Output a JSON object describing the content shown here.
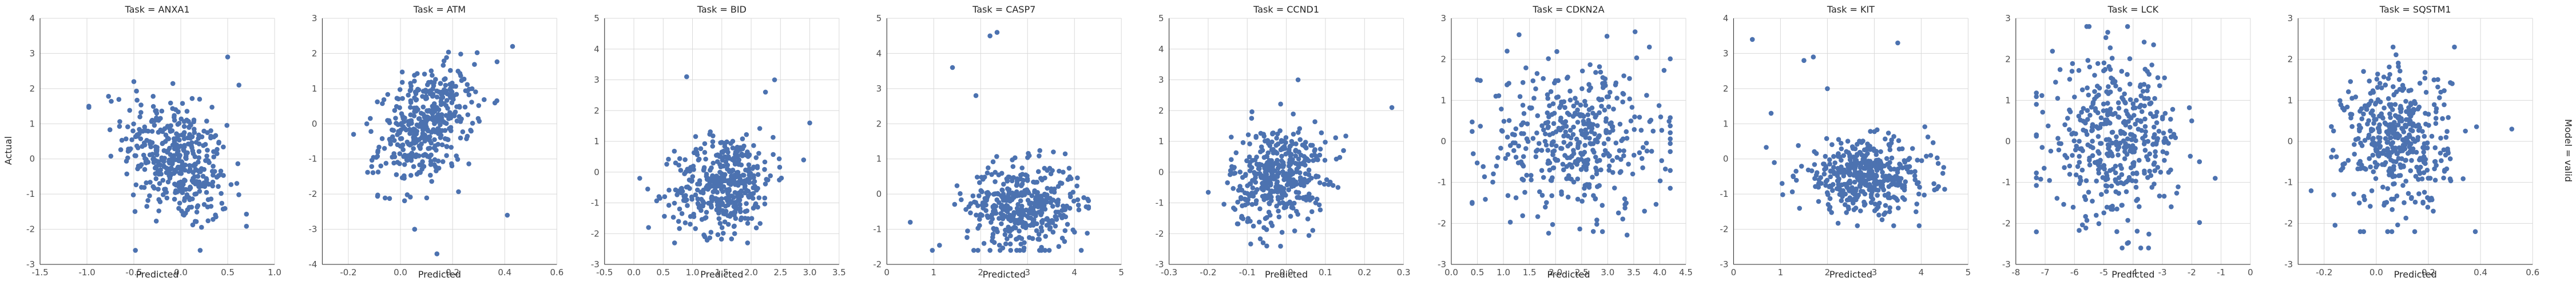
{
  "colors": {
    "points": "#4c72b0",
    "grid": "#d9d9d9",
    "axis": "#262626",
    "background": "#ffffff"
  },
  "figure": {
    "ylabel": "Actual",
    "row_label": "Model = valid",
    "xlabel": "Predicted",
    "grid": true
  },
  "chart_data": [
    {
      "type": "scatter",
      "title": "Task = ANXA1",
      "xlabel": "Predicted",
      "ylabel": "Actual",
      "xlim": [
        -1.5,
        1.0
      ],
      "ylim": [
        -3,
        4
      ],
      "xticks": [
        "-1.5",
        "-1.0",
        "-0.5",
        "0.0",
        "0.5",
        "1.0"
      ],
      "yticks": [
        "-3",
        "-2",
        "-1",
        "0",
        "1",
        "2",
        "3",
        "4"
      ],
      "points": {
        "x_center": -0.05,
        "x_spread": 0.28,
        "x_min": -0.98,
        "x_max": 0.7,
        "y_center": -0.05,
        "y_spread": 0.85,
        "y_min": -2.6,
        "y_max": 2.6,
        "slope": -1.2,
        "n": 420,
        "extra": [
          [
            -0.98,
            1.5
          ],
          [
            -0.5,
            2.2
          ],
          [
            0.62,
            2.1
          ],
          [
            0.5,
            2.9
          ]
        ]
      }
    },
    {
      "type": "scatter",
      "title": "Task = ATM",
      "xlabel": "Predicted",
      "ylabel": "",
      "xlim": [
        -0.3,
        0.6
      ],
      "ylim": [
        -4,
        3
      ],
      "xticks": [
        "-0.2",
        "0.0",
        "0.2",
        "0.4",
        "0.6"
      ],
      "yticks": [
        "-4",
        "-3",
        "-2",
        "-1",
        "0",
        "1",
        "2",
        "3"
      ],
      "points": {
        "x_center": 0.1,
        "x_spread": 0.09,
        "x_min": -0.22,
        "x_max": 0.5,
        "y_center": -0.05,
        "y_spread": 0.75,
        "y_min": -3.0,
        "y_max": 2.4,
        "slope": 3.0,
        "n": 420,
        "extra": [
          [
            -0.18,
            -0.3
          ],
          [
            0.43,
            2.2
          ],
          [
            0.41,
            -2.6
          ],
          [
            0.14,
            -3.7
          ]
        ]
      }
    },
    {
      "type": "scatter",
      "title": "Task = BID",
      "xlabel": "Predicted",
      "ylabel": "",
      "xlim": [
        -0.5,
        3.5
      ],
      "ylim": [
        -3,
        5
      ],
      "xticks": [
        "-0.5",
        "0.0",
        "0.5",
        "1.0",
        "1.5",
        "2.0",
        "2.5",
        "3.0",
        "3.5"
      ],
      "yticks": [
        "-3",
        "-2",
        "-1",
        "0",
        "1",
        "2",
        "3",
        "4",
        "5"
      ],
      "points": {
        "x_center": 1.55,
        "x_spread": 0.42,
        "x_min": 0.0,
        "x_max": 2.9,
        "y_center": -0.35,
        "y_spread": 0.8,
        "y_min": -2.3,
        "y_max": 3.2,
        "slope": 0.3,
        "n": 420,
        "extra": [
          [
            0.1,
            -0.2
          ],
          [
            0.25,
            -1.8
          ],
          [
            0.9,
            3.1
          ],
          [
            2.4,
            3.0
          ],
          [
            3.0,
            1.6
          ]
        ]
      }
    },
    {
      "type": "scatter",
      "title": "Task = CASP7",
      "xlabel": "Predicted",
      "ylabel": "",
      "xlim": [
        0,
        5
      ],
      "ylim": [
        -2,
        5
      ],
      "xticks": [
        "0",
        "1",
        "2",
        "3",
        "4",
        "5"
      ],
      "yticks": [
        "-2",
        "-1",
        "0",
        "1",
        "2",
        "3",
        "4",
        "5"
      ],
      "points": {
        "x_center": 2.9,
        "x_spread": 0.6,
        "x_min": 0.5,
        "x_max": 4.3,
        "y_center": -0.35,
        "y_spread": 0.6,
        "y_min": -1.6,
        "y_max": 4.6,
        "slope": 0.0,
        "n": 420,
        "extra": [
          [
            1.4,
            3.6
          ],
          [
            2.2,
            4.5
          ],
          [
            2.35,
            4.6
          ],
          [
            1.9,
            2.8
          ],
          [
            0.5,
            -0.8
          ],
          [
            4.2,
            -0.1
          ]
        ]
      }
    },
    {
      "type": "scatter",
      "title": "Task = CCND1",
      "xlabel": "Predicted",
      "ylabel": "",
      "xlim": [
        -0.3,
        0.3
      ],
      "ylim": [
        -3,
        5
      ],
      "xticks": [
        "-0.3",
        "-0.2",
        "-0.1",
        "0.0",
        "0.1",
        "0.2",
        "0.3"
      ],
      "yticks": [
        "-3",
        "-2",
        "-1",
        "0",
        "1",
        "2",
        "3",
        "4",
        "5"
      ],
      "points": {
        "x_center": -0.02,
        "x_spread": 0.06,
        "x_min": -0.22,
        "x_max": 0.28,
        "y_center": -0.1,
        "y_spread": 0.8,
        "y_min": -2.5,
        "y_max": 2.9,
        "slope": 2.0,
        "n": 420,
        "extra": [
          [
            0.03,
            3.0
          ],
          [
            0.27,
            2.1
          ],
          [
            -0.05,
            -2.4
          ]
        ]
      }
    },
    {
      "type": "scatter",
      "title": "Task = CDKN2A",
      "xlabel": "Predicted",
      "ylabel": "",
      "xlim": [
        0.0,
        4.5
      ],
      "ylim": [
        -3,
        3
      ],
      "xticks": [
        "0.0",
        "0.5",
        "1.0",
        "1.5",
        "2.0",
        "2.5",
        "3.0",
        "3.5",
        "4.0",
        "4.5"
      ],
      "yticks": [
        "-3",
        "-2",
        "-1",
        "0",
        "1",
        "2",
        "3"
      ],
      "points": {
        "x_center": 2.4,
        "x_spread": 0.85,
        "x_min": 0.4,
        "x_max": 4.2,
        "y_center": 0.05,
        "y_spread": 0.9,
        "y_min": -2.3,
        "y_max": 2.7,
        "slope": 0.0,
        "n": 420,
        "extra": [
          [
            1.3,
            2.6
          ],
          [
            0.5,
            1.5
          ],
          [
            3.8,
            2.3
          ],
          [
            2.9,
            -2.2
          ]
        ]
      }
    },
    {
      "type": "scatter",
      "title": "Task = KIT",
      "xlabel": "Predicted",
      "ylabel": "",
      "xlim": [
        0,
        5
      ],
      "ylim": [
        -3,
        4
      ],
      "xticks": [
        "0",
        "1",
        "2",
        "3",
        "4",
        "5"
      ],
      "yticks": [
        "-3",
        "-2",
        "-1",
        "0",
        "1",
        "2",
        "3",
        "4"
      ],
      "points": {
        "x_center": 2.8,
        "x_spread": 0.7,
        "x_min": 0.5,
        "x_max": 4.5,
        "y_center": -0.5,
        "y_spread": 0.5,
        "y_min": -1.9,
        "y_max": 3.4,
        "slope": 0.0,
        "n": 420,
        "extra": [
          [
            0.4,
            3.4
          ],
          [
            1.5,
            2.8
          ],
          [
            1.7,
            2.9
          ],
          [
            3.5,
            3.3
          ],
          [
            2.0,
            2.0
          ],
          [
            0.8,
            1.3
          ]
        ]
      }
    },
    {
      "type": "scatter",
      "title": "Task = LCK",
      "xlabel": "Predicted",
      "ylabel": "",
      "xlim": [
        -8,
        0
      ],
      "ylim": [
        -3,
        3
      ],
      "xticks": [
        "-8",
        "-7",
        "-6",
        "-5",
        "-4",
        "-3",
        "-2",
        "-1",
        "0"
      ],
      "yticks": [
        "-3",
        "-2",
        "-1",
        "0",
        "1",
        "2",
        "3"
      ],
      "points": {
        "x_center": -4.6,
        "x_spread": 1.1,
        "x_min": -7.3,
        "x_max": -1.2,
        "y_center": 0.0,
        "y_spread": 0.95,
        "y_min": -2.6,
        "y_max": 2.8,
        "slope": 0.0,
        "n": 420,
        "extra": [
          [
            -5.5,
            2.8
          ],
          [
            -1.2,
            -0.9
          ],
          [
            -2.0,
            0.5
          ]
        ]
      }
    },
    {
      "type": "scatter",
      "title": "Task = SQSTM1",
      "xlabel": "Predicted",
      "ylabel": "",
      "xlim": [
        -0.3,
        0.6
      ],
      "ylim": [
        -3,
        3
      ],
      "xticks": [
        "-0.2",
        "0.0",
        "0.2",
        "0.4",
        "0.6"
      ],
      "yticks": [
        "-3",
        "-2",
        "-1",
        "0",
        "1",
        "2",
        "3"
      ],
      "points": {
        "x_center": 0.08,
        "x_spread": 0.1,
        "x_min": -0.25,
        "x_max": 0.52,
        "y_center": 0.05,
        "y_spread": 0.85,
        "y_min": -2.2,
        "y_max": 2.3,
        "slope": 0.0,
        "n": 420,
        "extra": [
          [
            0.3,
            2.3
          ],
          [
            0.38,
            -2.2
          ],
          [
            0.52,
            0.3
          ]
        ]
      }
    }
  ]
}
